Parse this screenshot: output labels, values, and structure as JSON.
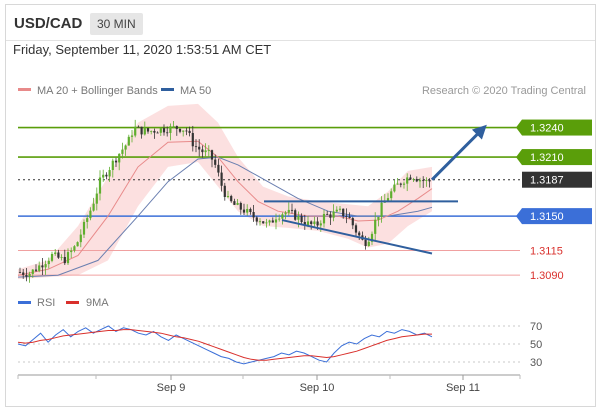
{
  "header": {
    "pair": "USD/CAD",
    "timeframe": "30 MIN"
  },
  "datetime": "Friday, September 11, 2020 1:53:51 AM CET",
  "legend": {
    "bollinger": "MA 20 + Bollinger Bands",
    "ma50": "MA 50",
    "credit": "Research © 2020 Trading Central"
  },
  "rsi_legend": {
    "rsi": "RSI",
    "ma": "9MA"
  },
  "colors": {
    "resistance": "#5a9e0a",
    "support": "#3b6fd8",
    "target": "#d9302c",
    "bb_fill": "#fbd6d6",
    "ma20": "#e88a8a",
    "ma50": "#6a7fb0",
    "candle_up": "#5fae2e",
    "candle_down": "#333333",
    "arrow": "#2f5f9e",
    "current": "#333333"
  },
  "chart_data": [
    {
      "type": "candlestick",
      "symbol": "USD/CAD",
      "x_ticks": [
        "Sep 9",
        "Sep 10",
        "Sep 11"
      ],
      "ylim": [
        1.308,
        1.3268
      ],
      "levels": [
        {
          "value": 1.324,
          "label": "1.3240",
          "kind": "resistance"
        },
        {
          "value": 1.321,
          "label": "1.3210",
          "kind": "resistance"
        },
        {
          "value": 1.3187,
          "label": "1.3187",
          "kind": "current"
        },
        {
          "value": 1.315,
          "label": "1.3150",
          "kind": "support"
        },
        {
          "value": 1.3115,
          "label": "1.3115",
          "kind": "target"
        },
        {
          "value": 1.309,
          "label": "1.3090",
          "kind": "target"
        }
      ],
      "price_path": [
        [
          0,
          1.3093
        ],
        [
          12,
          1.3092
        ],
        [
          22,
          1.31
        ],
        [
          34,
          1.311
        ],
        [
          46,
          1.3105
        ],
        [
          58,
          1.312
        ],
        [
          66,
          1.314
        ],
        [
          74,
          1.316
        ],
        [
          82,
          1.3185
        ],
        [
          92,
          1.32
        ],
        [
          102,
          1.3215
        ],
        [
          110,
          1.3225
        ],
        [
          116,
          1.324
        ],
        [
          122,
          1.3237
        ],
        [
          130,
          1.3236
        ],
        [
          140,
          1.3238
        ],
        [
          150,
          1.3239
        ],
        [
          160,
          1.324
        ],
        [
          168,
          1.3238
        ],
        [
          176,
          1.3222
        ],
        [
          184,
          1.3216
        ],
        [
          192,
          1.3212
        ],
        [
          198,
          1.32
        ],
        [
          204,
          1.318
        ],
        [
          210,
          1.3166
        ],
        [
          218,
          1.316
        ],
        [
          226,
          1.3156
        ],
        [
          234,
          1.315
        ],
        [
          242,
          1.3147
        ],
        [
          250,
          1.314
        ],
        [
          258,
          1.315
        ],
        [
          266,
          1.3154
        ],
        [
          274,
          1.3152
        ],
        [
          282,
          1.3147
        ],
        [
          290,
          1.3142
        ],
        [
          298,
          1.314
        ],
        [
          306,
          1.315
        ],
        [
          314,
          1.3152
        ],
        [
          322,
          1.3154
        ],
        [
          330,
          1.315
        ],
        [
          338,
          1.3135
        ],
        [
          346,
          1.3122
        ],
        [
          352,
          1.313
        ],
        [
          358,
          1.3147
        ],
        [
          364,
          1.316
        ],
        [
          370,
          1.317
        ],
        [
          378,
          1.318
        ],
        [
          386,
          1.3187
        ],
        [
          394,
          1.3192
        ],
        [
          400,
          1.3188
        ],
        [
          408,
          1.3185
        ],
        [
          414,
          1.3186
        ]
      ],
      "ma20_path": [
        [
          0,
          1.309
        ],
        [
          30,
          1.3096
        ],
        [
          60,
          1.311
        ],
        [
          90,
          1.315
        ],
        [
          120,
          1.32
        ],
        [
          150,
          1.3225
        ],
        [
          180,
          1.3226
        ],
        [
          200,
          1.321
        ],
        [
          220,
          1.3185
        ],
        [
          240,
          1.3165
        ],
        [
          260,
          1.3155
        ],
        [
          290,
          1.315
        ],
        [
          320,
          1.315
        ],
        [
          340,
          1.3145
        ],
        [
          360,
          1.3146
        ],
        [
          380,
          1.3155
        ],
        [
          400,
          1.3168
        ],
        [
          414,
          1.3178
        ]
      ],
      "ma50_path": [
        [
          0,
          1.3088
        ],
        [
          40,
          1.309
        ],
        [
          80,
          1.3105
        ],
        [
          120,
          1.315
        ],
        [
          150,
          1.3185
        ],
        [
          180,
          1.3208
        ],
        [
          200,
          1.321
        ],
        [
          220,
          1.3202
        ],
        [
          250,
          1.3185
        ],
        [
          280,
          1.3168
        ],
        [
          310,
          1.3155
        ],
        [
          340,
          1.315
        ],
        [
          370,
          1.315
        ],
        [
          400,
          1.3155
        ],
        [
          414,
          1.3159
        ]
      ],
      "bb_upper": [
        [
          0,
          1.3096
        ],
        [
          30,
          1.3105
        ],
        [
          60,
          1.314
        ],
        [
          90,
          1.319
        ],
        [
          120,
          1.3245
        ],
        [
          150,
          1.3262
        ],
        [
          180,
          1.3264
        ],
        [
          200,
          1.3245
        ],
        [
          220,
          1.321
        ],
        [
          245,
          1.318
        ],
        [
          270,
          1.317
        ],
        [
          300,
          1.3165
        ],
        [
          330,
          1.3162
        ],
        [
          350,
          1.316
        ],
        [
          370,
          1.3175
        ],
        [
          390,
          1.3196
        ],
        [
          414,
          1.32
        ]
      ],
      "bb_lower": [
        [
          0,
          1.3086
        ],
        [
          30,
          1.3088
        ],
        [
          60,
          1.309
        ],
        [
          90,
          1.3105
        ],
        [
          120,
          1.316
        ],
        [
          150,
          1.32
        ],
        [
          180,
          1.3205
        ],
        [
          200,
          1.318
        ],
        [
          220,
          1.3155
        ],
        [
          245,
          1.314
        ],
        [
          270,
          1.3138
        ],
        [
          300,
          1.3135
        ],
        [
          330,
          1.3127
        ],
        [
          350,
          1.3118
        ],
        [
          370,
          1.3122
        ],
        [
          390,
          1.314
        ],
        [
          414,
          1.3155
        ]
      ],
      "trendlines": [
        {
          "name": "neckline",
          "from": [
            246,
            1.3165
          ],
          "to": [
            440,
            1.3165
          ]
        },
        {
          "name": "falling-support",
          "from": [
            264,
            1.3146
          ],
          "to": [
            414,
            1.3112
          ]
        }
      ],
      "projection": {
        "from": [
          414,
          1.3187
        ],
        "to": [
          466,
          1.324
        ]
      }
    },
    {
      "type": "line",
      "name": "RSI",
      "ylim": [
        20,
        80
      ],
      "y_ticks": [
        70,
        50,
        30
      ],
      "series": [
        {
          "name": "RSI",
          "values": [
            50,
            48,
            55,
            62,
            52,
            60,
            66,
            58,
            64,
            68,
            62,
            66,
            70,
            64,
            68,
            66,
            62,
            60,
            64,
            58,
            54,
            60,
            56,
            52,
            48,
            44,
            40,
            36,
            34,
            30,
            28,
            30,
            32,
            34,
            36,
            40,
            38,
            42,
            40,
            36,
            32,
            30,
            40,
            48,
            52,
            50,
            56,
            60,
            58,
            64,
            62,
            66,
            64,
            60,
            62,
            58
          ]
        },
        {
          "name": "9MA",
          "values": [
            52,
            51,
            52,
            54,
            55,
            57,
            59,
            60,
            61,
            62,
            63,
            64,
            65,
            65,
            66,
            66,
            65,
            64,
            63,
            62,
            60,
            58,
            57,
            55,
            53,
            50,
            47,
            44,
            41,
            38,
            35,
            33,
            32,
            32,
            33,
            34,
            35,
            36,
            37,
            37,
            36,
            35,
            36,
            38,
            40,
            42,
            45,
            48,
            51,
            54,
            56,
            58,
            59,
            60,
            61,
            61
          ]
        }
      ]
    }
  ]
}
